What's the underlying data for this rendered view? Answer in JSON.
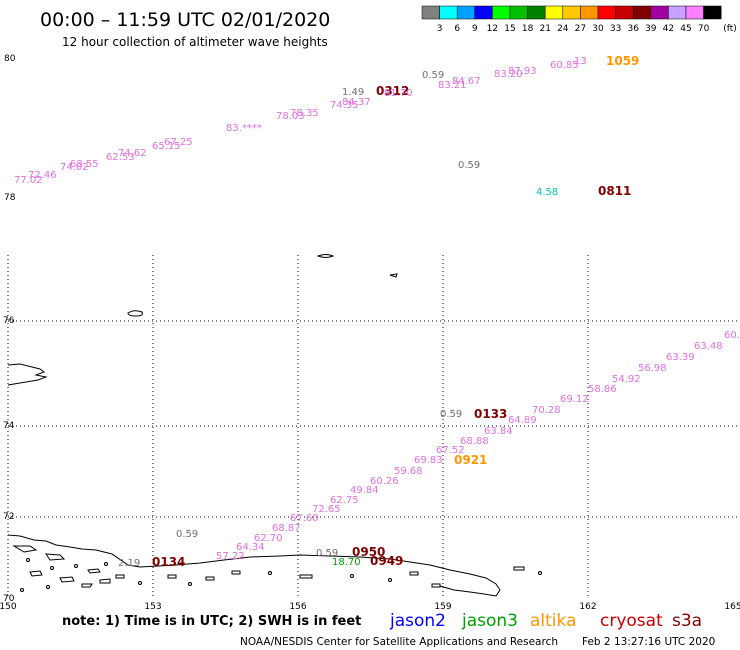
{
  "header": {
    "title": "00:00 – 11:59 UTC 02/01/2020",
    "subtitle": "12 hour collection of altimeter wave heights"
  },
  "legend": {
    "colors": [
      "#808080",
      "#00ffff",
      "#00a0ff",
      "#0000ff",
      "#00ff00",
      "#00c000",
      "#008000",
      "#ffff00",
      "#ffc800",
      "#ff9600",
      "#ff0000",
      "#c80000",
      "#800000",
      "#a000a0",
      "#c8a0ff",
      "#ff80ff",
      "#000000"
    ],
    "labels": [
      "3",
      "6",
      "9",
      "12",
      "15",
      "18",
      "21",
      "24",
      "27",
      "30",
      "33",
      "36",
      "39",
      "42",
      "45",
      "70"
    ],
    "unit": "(ft)"
  },
  "axes": {
    "lat_upper": [
      "80",
      "78"
    ],
    "lat_lower": [
      "76",
      "74",
      "72",
      "70"
    ],
    "lon": [
      "150",
      "153",
      "156",
      "159",
      "162",
      "165"
    ]
  },
  "tracks_upper": [
    {
      "text": "77.02",
      "color": "#e070e0"
    },
    {
      "text": "72.46",
      "color": "#e070e0"
    },
    {
      "text": "74.02",
      "color": "#e070e0"
    },
    {
      "text": "68.55",
      "color": "#e070e0"
    },
    {
      "text": "62.53",
      "color": "#e070e0"
    },
    {
      "text": "74.62",
      "color": "#e070e0"
    },
    {
      "text": "65.15",
      "color": "#e070e0"
    },
    {
      "text": "67.25",
      "color": "#e070e0"
    },
    {
      "text": "83.****",
      "color": "#e070e0"
    },
    {
      "text": "78.03",
      "color": "#e070e0"
    },
    {
      "text": "78.35",
      "color": "#e070e0"
    },
    {
      "text": "74.35",
      "color": "#e070e0"
    },
    {
      "text": "84.37",
      "color": "#e070e0"
    },
    {
      "text": "1.49",
      "color": "#707070"
    },
    {
      "text": "0312",
      "color": "#800000"
    },
    {
      "text": "81.70",
      "color": "#e070e0"
    },
    {
      "text": "0.59",
      "color": "#707070"
    },
    {
      "text": "83.21",
      "color": "#e070e0"
    },
    {
      "text": "84.67",
      "color": "#e070e0"
    },
    {
      "text": "83.20",
      "color": "#e070e0"
    },
    {
      "text": "87.93",
      "color": "#e070e0"
    },
    {
      "text": "60.85",
      "color": "#e070e0"
    },
    {
      "text": "13",
      "color": "#e070e0"
    },
    {
      "text": "1059",
      "color": "#ff9600"
    },
    {
      "text": "0.59",
      "color": "#707070"
    },
    {
      "text": "4.58",
      "color": "#00c0c0"
    },
    {
      "text": "0811",
      "color": "#800000"
    }
  ],
  "tracks_lower": [
    {
      "text": "60.",
      "color": "#e070e0"
    },
    {
      "text": "63.48",
      "color": "#e070e0"
    },
    {
      "text": "63.39",
      "color": "#e070e0"
    },
    {
      "text": "56.98",
      "color": "#e070e0"
    },
    {
      "text": "54.92",
      "color": "#e070e0"
    },
    {
      "text": "58.86",
      "color": "#e070e0"
    },
    {
      "text": "69.12",
      "color": "#e070e0"
    },
    {
      "text": "70.28",
      "color": "#e070e0"
    },
    {
      "text": "64.89",
      "color": "#e070e0"
    },
    {
      "text": "0.59",
      "color": "#707070"
    },
    {
      "text": "0133",
      "color": "#800000"
    },
    {
      "text": "63.84",
      "color": "#e070e0"
    },
    {
      "text": "68.88",
      "color": "#e070e0"
    },
    {
      "text": "67.52",
      "color": "#e070e0"
    },
    {
      "text": "69.83",
      "color": "#e070e0"
    },
    {
      "text": "0921",
      "color": "#ff9600"
    },
    {
      "text": "59.68",
      "color": "#e070e0"
    },
    {
      "text": "60.26",
      "color": "#e070e0"
    },
    {
      "text": "49.84",
      "color": "#e070e0"
    },
    {
      "text": "62.75",
      "color": "#e070e0"
    },
    {
      "text": "72.65",
      "color": "#e070e0"
    },
    {
      "text": "67.60",
      "color": "#e070e0"
    },
    {
      "text": "68.87",
      "color": "#e070e0"
    },
    {
      "text": "62.70",
      "color": "#e070e0"
    },
    {
      "text": "64.34",
      "color": "#e070e0"
    },
    {
      "text": "57.22",
      "color": "#e070e0"
    },
    {
      "text": "0.59",
      "color": "#707070"
    },
    {
      "text": "2.19",
      "color": "#707070"
    },
    {
      "text": "0134",
      "color": "#800000"
    },
    {
      "text": "0.59",
      "color": "#707070"
    },
    {
      "text": "0950",
      "color": "#800000"
    },
    {
      "text": "18.70",
      "color": "#00a000"
    },
    {
      "text": "0949",
      "color": "#800000"
    }
  ],
  "footer": {
    "note": "note: 1) Time is in UTC; 2) SWH is in feet",
    "satellites": [
      {
        "name": "jason2",
        "color": "#0000ff"
      },
      {
        "name": "jason3",
        "color": "#00a000"
      },
      {
        "name": "altika",
        "color": "#ff9600"
      },
      {
        "name": "cryosat",
        "color": "#c80000"
      },
      {
        "name": "s3a",
        "color": "#800000"
      }
    ],
    "credit": "NOAA/NESDIS Center for Satellite Applications and Research",
    "timestamp": "Feb  2 13:27:16 UTC 2020"
  }
}
